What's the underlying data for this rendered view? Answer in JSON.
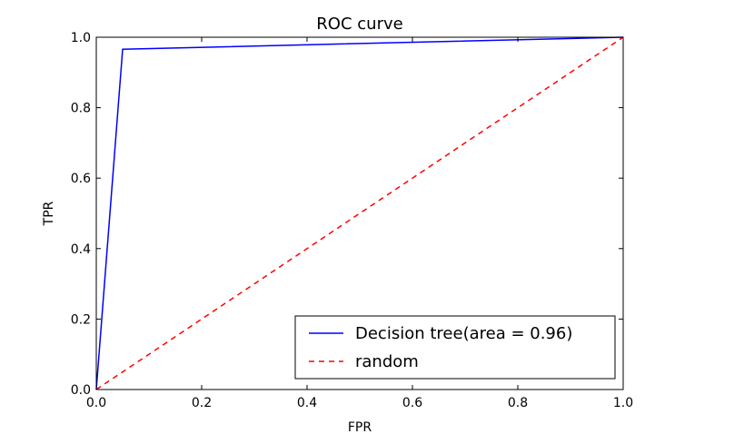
{
  "chart_data": {
    "type": "line",
    "title": "ROC curve",
    "xlabel": "FPR",
    "ylabel": "TPR",
    "xlim": [
      0.0,
      1.0
    ],
    "ylim": [
      0.0,
      1.0
    ],
    "xticks": [
      "0.0",
      "0.2",
      "0.4",
      "0.6",
      "0.8",
      "1.0"
    ],
    "yticks": [
      "0.0",
      "0.2",
      "0.4",
      "0.6",
      "0.8",
      "1.0"
    ],
    "grid": false,
    "legend_position": "lower-right",
    "series": [
      {
        "name": "Decision tree(area = 0.96)",
        "color": "#0000ff",
        "style": "solid",
        "x": [
          0.0,
          0.05,
          1.0
        ],
        "y": [
          0.0,
          0.966,
          1.0
        ]
      },
      {
        "name": "random",
        "color": "#ff0000",
        "style": "dashed",
        "x": [
          0.0,
          1.0
        ],
        "y": [
          0.0,
          1.0
        ]
      }
    ]
  }
}
